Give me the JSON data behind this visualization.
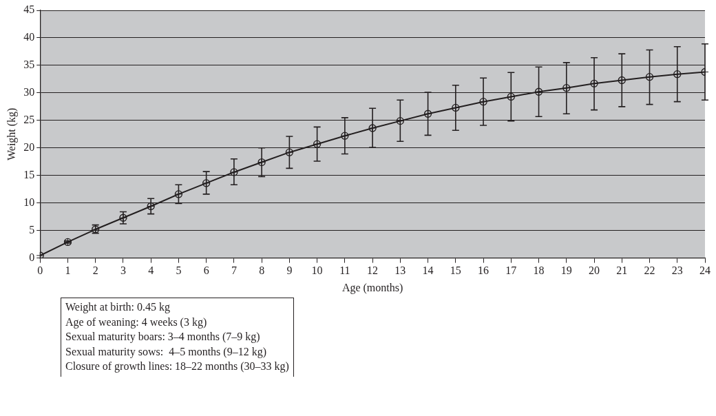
{
  "chart_data": {
    "type": "line",
    "xlabel": "Age (months)",
    "ylabel": "Weight (kg)",
    "x": [
      0,
      1,
      2,
      3,
      4,
      5,
      6,
      7,
      8,
      9,
      10,
      11,
      12,
      13,
      14,
      15,
      16,
      17,
      18,
      19,
      20,
      21,
      22,
      23,
      24
    ],
    "series": [
      {
        "color": "#231f20",
        "values": [
          0.45,
          2.9,
          5.2,
          7.3,
          9.4,
          11.6,
          13.6,
          15.6,
          17.4,
          19.2,
          20.7,
          22.2,
          23.6,
          24.9,
          26.2,
          27.3,
          28.4,
          29.3,
          30.2,
          30.9,
          31.7,
          32.3,
          32.9,
          33.4,
          33.8
        ],
        "errors": [
          null,
          [
            2.7,
            3.1
          ],
          [
            4.5,
            6.0
          ],
          [
            6.2,
            8.4
          ],
          [
            8.0,
            10.8
          ],
          [
            9.9,
            13.3
          ],
          [
            11.6,
            15.7
          ],
          [
            13.3,
            18.0
          ],
          [
            14.8,
            20.0
          ],
          [
            16.3,
            22.1
          ],
          [
            17.6,
            23.8
          ],
          [
            18.9,
            25.5
          ],
          [
            20.1,
            27.2
          ],
          [
            21.2,
            28.7
          ],
          [
            22.3,
            30.1
          ],
          [
            23.2,
            31.4
          ],
          [
            24.1,
            32.7
          ],
          [
            24.9,
            33.7
          ],
          [
            25.7,
            34.7
          ],
          [
            26.2,
            35.5
          ],
          [
            26.9,
            36.4
          ],
          [
            27.5,
            37.1
          ],
          [
            27.9,
            37.8
          ],
          [
            28.4,
            38.4
          ],
          [
            28.7,
            38.9
          ]
        ]
      }
    ],
    "xlim": [
      0,
      24
    ],
    "xticks": [
      0,
      1,
      2,
      3,
      4,
      5,
      6,
      7,
      8,
      9,
      10,
      11,
      12,
      13,
      14,
      15,
      16,
      17,
      18,
      19,
      20,
      21,
      22,
      23,
      24
    ],
    "ylim": [
      0,
      45
    ],
    "yticks": [
      0,
      5,
      10,
      15,
      20,
      25,
      30,
      35,
      40,
      45
    ],
    "grid": "y",
    "legend": false,
    "marker": "circle",
    "line_style": "solid",
    "annotations": [
      "Weight at birth: 0.45 kg",
      "Age of weaning: 4 weeks (3 kg)",
      "Sexual maturity boars: 3–4 months (7–9 kg)",
      "Sexual maturity sows:  4–5 months (9–12 kg)",
      "Closure of growth lines: 18–22 months (30–33 kg)"
    ]
  }
}
